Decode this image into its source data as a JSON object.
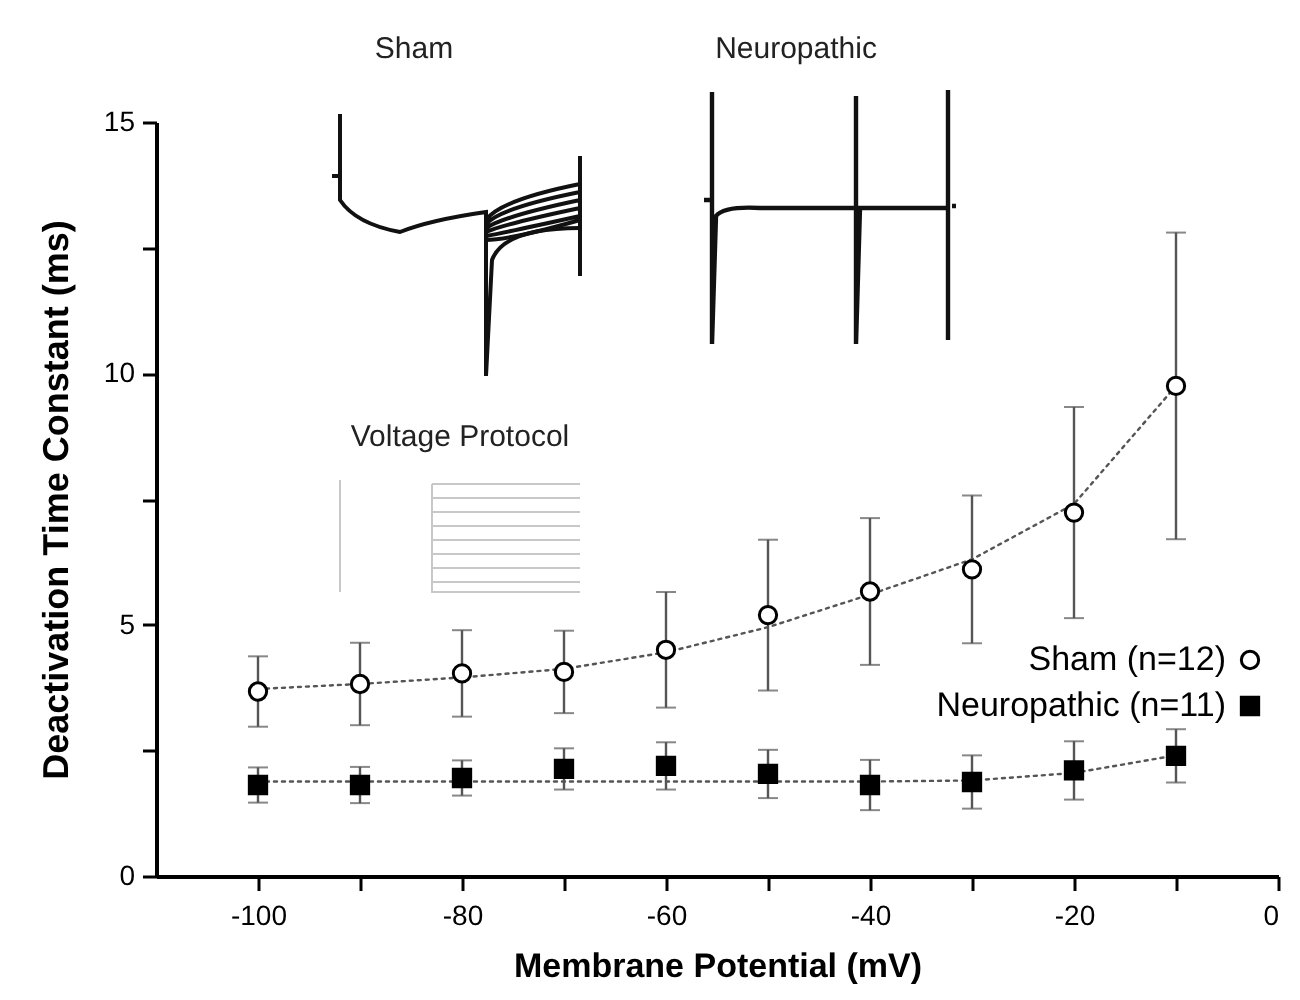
{
  "chart_data": {
    "type": "scatter",
    "xlabel": "Membrane Potential (mV)",
    "ylabel": "Deactivation Time Constant (ms)",
    "annotations": [
      "Sham",
      "Neuropathic",
      "Voltage Protocol"
    ],
    "x": [
      -100,
      -90,
      -80,
      -70,
      -60,
      -50,
      -40,
      -30,
      -20,
      -10
    ],
    "xlim": [
      -110,
      0
    ],
    "xticks": [
      -100,
      {
        "value": -90,
        "label": null
      },
      -80,
      {
        "value": -70,
        "label": null
      },
      -60,
      {
        "value": -50,
        "label": null
      },
      -40,
      {
        "value": -30,
        "label": null
      },
      -20,
      {
        "value": -10,
        "label": null
      },
      0
    ],
    "ylim": [
      0,
      15
    ],
    "yticks": [
      0,
      {
        "value": 2.5,
        "label": null
      },
      5,
      {
        "value": 7.5,
        "label": null
      },
      10,
      {
        "value": 12.5,
        "label": null
      },
      15
    ],
    "legend": "bottom right",
    "line_style": "dotted",
    "series": [
      {
        "name": "Sham (n=12)",
        "color": "#000000",
        "marker": "circle",
        "values": [
          3.67,
          3.82,
          4.03,
          4.06,
          4.5,
          5.19,
          5.66,
          6.1,
          7.23,
          9.75
        ],
        "errors": [
          0.7,
          0.82,
          0.86,
          0.82,
          1.15,
          1.5,
          1.46,
          1.47,
          2.1,
          3.05
        ]
      },
      {
        "name": "Neuropathic (n=11)",
        "color": "#000000",
        "marker": "square",
        "values": [
          1.81,
          1.81,
          1.95,
          2.13,
          2.19,
          2.03,
          1.81,
          1.87,
          2.1,
          2.39
        ],
        "errors": [
          0.35,
          0.36,
          0.35,
          0.41,
          0.47,
          0.48,
          0.5,
          0.53,
          0.58,
          0.53
        ]
      },
      {
        "type": "line",
        "color": "#555555",
        "x": [
          -100,
          -90,
          -80,
          -70,
          -60,
          -50,
          -40,
          -30,
          -20,
          -10
        ],
        "values": [
          3.72,
          3.82,
          3.95,
          4.12,
          4.45,
          4.95,
          5.6,
          6.3,
          7.4,
          9.75
        ]
      },
      {
        "type": "line",
        "color": "#555555",
        "x": [
          -100,
          -80,
          -60,
          -40,
          -30,
          -20,
          -10
        ],
        "values": [
          1.88,
          1.88,
          1.88,
          1.88,
          1.9,
          2.05,
          2.4
        ]
      }
    ]
  }
}
